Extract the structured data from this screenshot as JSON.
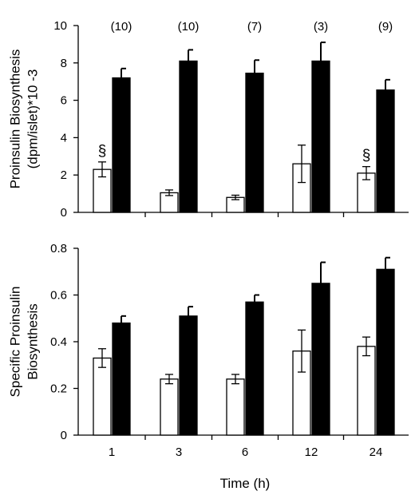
{
  "chart_data": [
    {
      "type": "bar",
      "ylabel_lines": [
        "Proinsulin Biosynthesis",
        "(dpm/islet)*10 -3"
      ],
      "ylim": [
        0,
        10
      ],
      "yticks": [
        "0",
        "2",
        "4",
        "6",
        "8",
        "10"
      ],
      "categories": [
        "1",
        "3",
        "6",
        "12",
        "24"
      ],
      "sample_sizes": [
        "(10)",
        "(10)",
        "(7)",
        "(3)",
        "(9)"
      ],
      "series": [
        {
          "fill": "#ffffff",
          "values": [
            2.3,
            1.05,
            0.8,
            2.6,
            2.1
          ],
          "errors": [
            0.4,
            0.15,
            0.12,
            1.0,
            0.35
          ]
        },
        {
          "fill": "#000000",
          "values": [
            7.2,
            8.1,
            7.45,
            8.1,
            6.55
          ],
          "errors": [
            0.5,
            0.6,
            0.7,
            1.0,
            0.55
          ]
        }
      ],
      "annotations": [
        {
          "category_index": 0,
          "series_index": 0,
          "symbol": "§"
        },
        {
          "category_index": 4,
          "series_index": 0,
          "symbol": "§"
        }
      ],
      "grid": false
    },
    {
      "type": "bar",
      "ylabel_lines": [
        "Specific Proinsulin",
        "Biosynthesis"
      ],
      "ylim": [
        0,
        0.8
      ],
      "yticks": [
        "0",
        "0.2",
        "0.4",
        "0.6",
        "0.8"
      ],
      "categories": [
        "1",
        "3",
        "6",
        "12",
        "24"
      ],
      "xlabel": "Time (h)",
      "series": [
        {
          "fill": "#ffffff",
          "values": [
            0.33,
            0.24,
            0.24,
            0.36,
            0.38
          ],
          "errors": [
            0.04,
            0.02,
            0.02,
            0.09,
            0.04
          ]
        },
        {
          "fill": "#000000",
          "values": [
            0.48,
            0.51,
            0.57,
            0.65,
            0.71
          ],
          "errors": [
            0.03,
            0.04,
            0.03,
            0.09,
            0.05
          ]
        }
      ],
      "grid": false
    }
  ]
}
